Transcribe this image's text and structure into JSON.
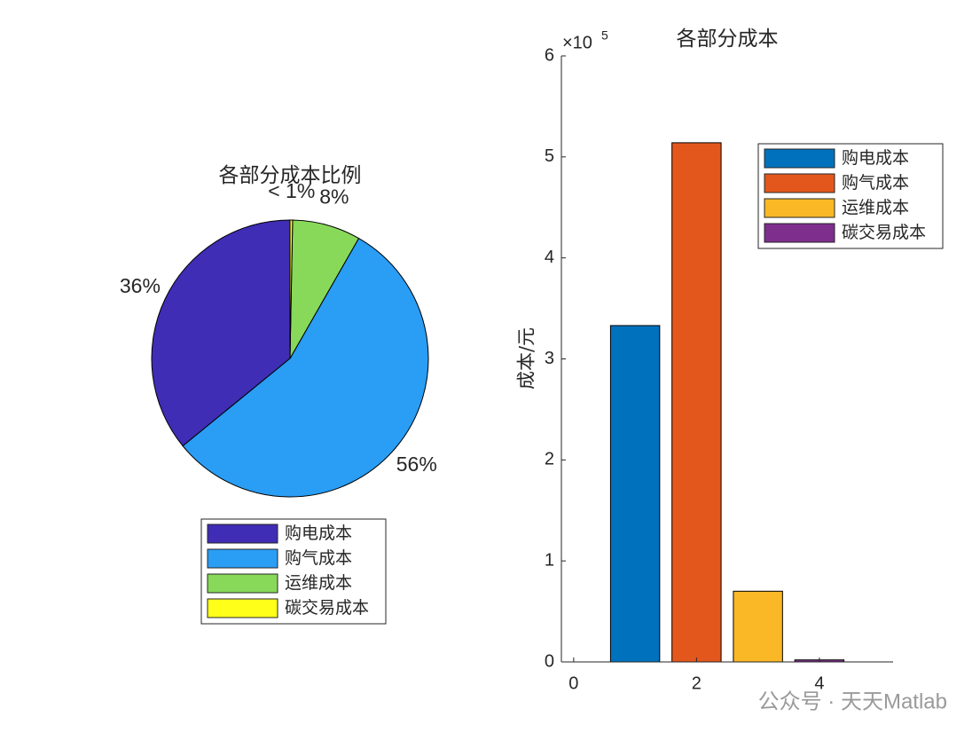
{
  "chart_data": [
    {
      "type": "pie",
      "title": "各部分成本比例",
      "categories": [
        "购电成本",
        "购气成本",
        "运维成本",
        "碳交易成本"
      ],
      "values": [
        36,
        56,
        8,
        0.3
      ],
      "value_labels": [
        "36%",
        "56%",
        "8%",
        "< 1%"
      ],
      "colors": [
        "#3f2db5",
        "#2a9df4",
        "#88d85a",
        "#ffff1a"
      ],
      "legend": "south"
    },
    {
      "type": "bar",
      "title": "各部分成本",
      "y_label": "成本/元",
      "y_multiplier": "×10",
      "y_exponent": "5",
      "series": [
        {
          "name": "购电成本",
          "color": "#0072bd",
          "x": [
            1
          ],
          "values": [
            333000
          ]
        },
        {
          "name": "购气成本",
          "color": "#e3571d",
          "x": [
            2
          ],
          "values": [
            514000
          ]
        },
        {
          "name": "运维成本",
          "color": "#fbb826",
          "x": [
            3
          ],
          "values": [
            70000
          ]
        },
        {
          "name": "碳交易成本",
          "color": "#7e2f8e",
          "x": [
            4
          ],
          "values": [
            2000
          ]
        }
      ],
      "xlim": [
        -0.2,
        5.2
      ],
      "xticks": [
        0,
        2,
        4
      ],
      "ylim": [
        0,
        600000
      ],
      "yticks": [
        {
          "value": 0,
          "label": "0"
        },
        {
          "value": 100000,
          "label": "1"
        },
        {
          "value": 200000,
          "label": "2"
        },
        {
          "value": 300000,
          "label": "3"
        },
        {
          "value": 400000,
          "label": "4"
        },
        {
          "value": 500000,
          "label": "5"
        },
        {
          "value": 600000,
          "label": "6"
        }
      ],
      "legend": "northeast"
    }
  ],
  "watermark": "公众号 · 天天Matlab"
}
